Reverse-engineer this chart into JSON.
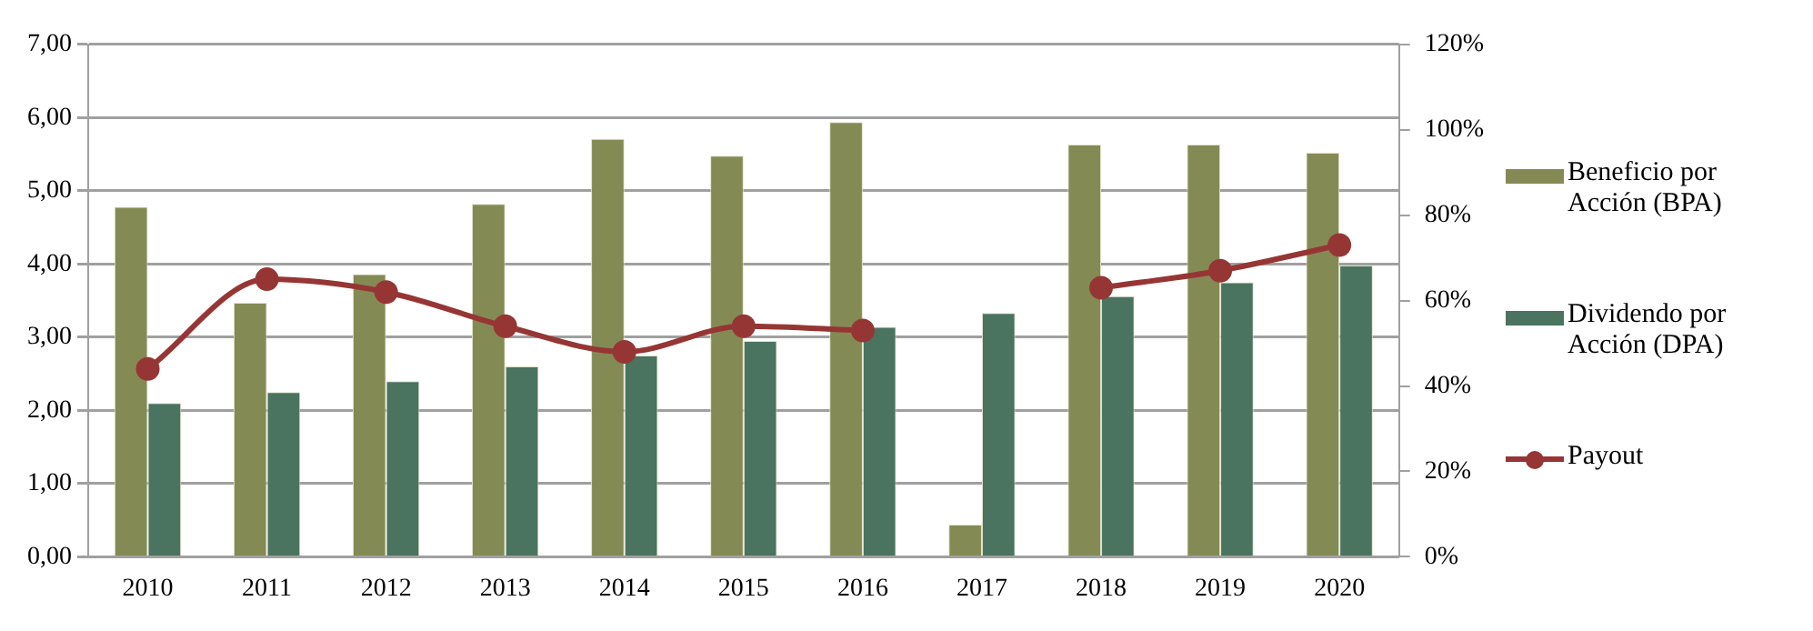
{
  "chart_data": {
    "type": "bar",
    "categories": [
      "2010",
      "2011",
      "2012",
      "2013",
      "2014",
      "2015",
      "2016",
      "2017",
      "2018",
      "2019",
      "2020"
    ],
    "series": [
      {
        "name": "Beneficio por Acción (BPA)",
        "color": "#848a54",
        "values": [
          4.78,
          3.47,
          3.86,
          4.82,
          5.71,
          5.48,
          5.94,
          0.44,
          5.63,
          5.63,
          5.52
        ]
      },
      {
        "name": "Dividendo por Acción (DPA)",
        "color": "#4a7360",
        "values": [
          2.1,
          2.25,
          2.4,
          2.6,
          2.75,
          2.95,
          3.14,
          3.33,
          3.56,
          3.75,
          3.98
        ]
      },
      {
        "name": "Payout",
        "type": "line",
        "axis": "y2",
        "color": "#963634",
        "marker": "circle",
        "values": [
          44,
          65,
          62,
          54,
          48,
          54,
          53,
          null,
          63,
          67,
          73
        ]
      }
    ],
    "ylim": [
      0,
      7
    ],
    "yticks": [
      {
        "value": 0,
        "label": "0,00"
      },
      {
        "value": 1,
        "label": "1,00"
      },
      {
        "value": 2,
        "label": "2,00"
      },
      {
        "value": 3,
        "label": "3,00"
      },
      {
        "value": 4,
        "label": "4,00"
      },
      {
        "value": 5,
        "label": "5,00"
      },
      {
        "value": 6,
        "label": "6,00"
      },
      {
        "value": 7,
        "label": "7,00"
      }
    ],
    "y2lim": [
      0,
      120
    ],
    "y2ticks": [
      {
        "value": 0,
        "label": "0%"
      },
      {
        "value": 20,
        "label": "20%"
      },
      {
        "value": 40,
        "label": "40%"
      },
      {
        "value": 60,
        "label": "60%"
      },
      {
        "value": 80,
        "label": "80%"
      },
      {
        "value": 100,
        "label": "100%"
      },
      {
        "value": 120,
        "label": "120%"
      }
    ],
    "grid": "y",
    "legend": "right"
  }
}
